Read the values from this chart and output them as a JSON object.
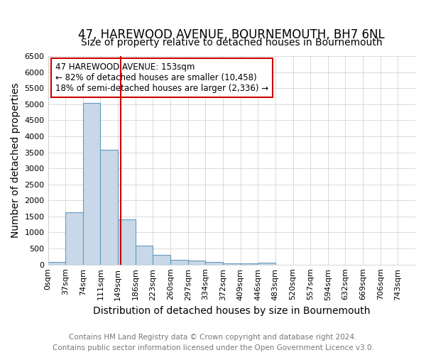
{
  "title": "47, HAREWOOD AVENUE, BOURNEMOUTH, BH7 6NL",
  "subtitle": "Size of property relative to detached houses in Bournemouth",
  "xlabel": "Distribution of detached houses by size in Bournemouth",
  "ylabel": "Number of detached properties",
  "footer_line1": "Contains HM Land Registry data © Crown copyright and database right 2024.",
  "footer_line2": "Contains public sector information licensed under the Open Government Licence v3.0.",
  "bin_labels": [
    "0sqm",
    "37sqm",
    "74sqm",
    "111sqm",
    "149sqm",
    "186sqm",
    "223sqm",
    "260sqm",
    "297sqm",
    "334sqm",
    "372sqm",
    "409sqm",
    "446sqm",
    "483sqm",
    "520sqm",
    "557sqm",
    "594sqm",
    "632sqm",
    "669sqm",
    "706sqm",
    "743sqm"
  ],
  "bar_values": [
    75,
    1625,
    5050,
    3575,
    1400,
    600,
    300,
    150,
    120,
    90,
    45,
    35,
    55,
    0,
    0,
    0,
    0,
    0,
    0,
    0,
    0
  ],
  "bar_color": "#c8d8e8",
  "bar_edge_color": "#6699bb",
  "property_line_x": 4.14,
  "property_sqm": 153,
  "annotation_text_line1": "47 HAREWOOD AVENUE: 153sqm",
  "annotation_text_line2": "← 82% of detached houses are smaller (10,458)",
  "annotation_text_line3": "18% of semi-detached houses are larger (2,336) →",
  "annotation_box_color": "#cc0000",
  "ylim": [
    0,
    6500
  ],
  "yticks": [
    0,
    500,
    1000,
    1500,
    2000,
    2500,
    3000,
    3500,
    4000,
    4500,
    5000,
    5500,
    6000,
    6500
  ],
  "grid_color": "#cccccc",
  "background_color": "#ffffff",
  "title_fontsize": 12,
  "subtitle_fontsize": 10,
  "axis_label_fontsize": 10,
  "tick_fontsize": 8,
  "footer_fontsize": 7.5,
  "annotation_fontsize": 8.5
}
